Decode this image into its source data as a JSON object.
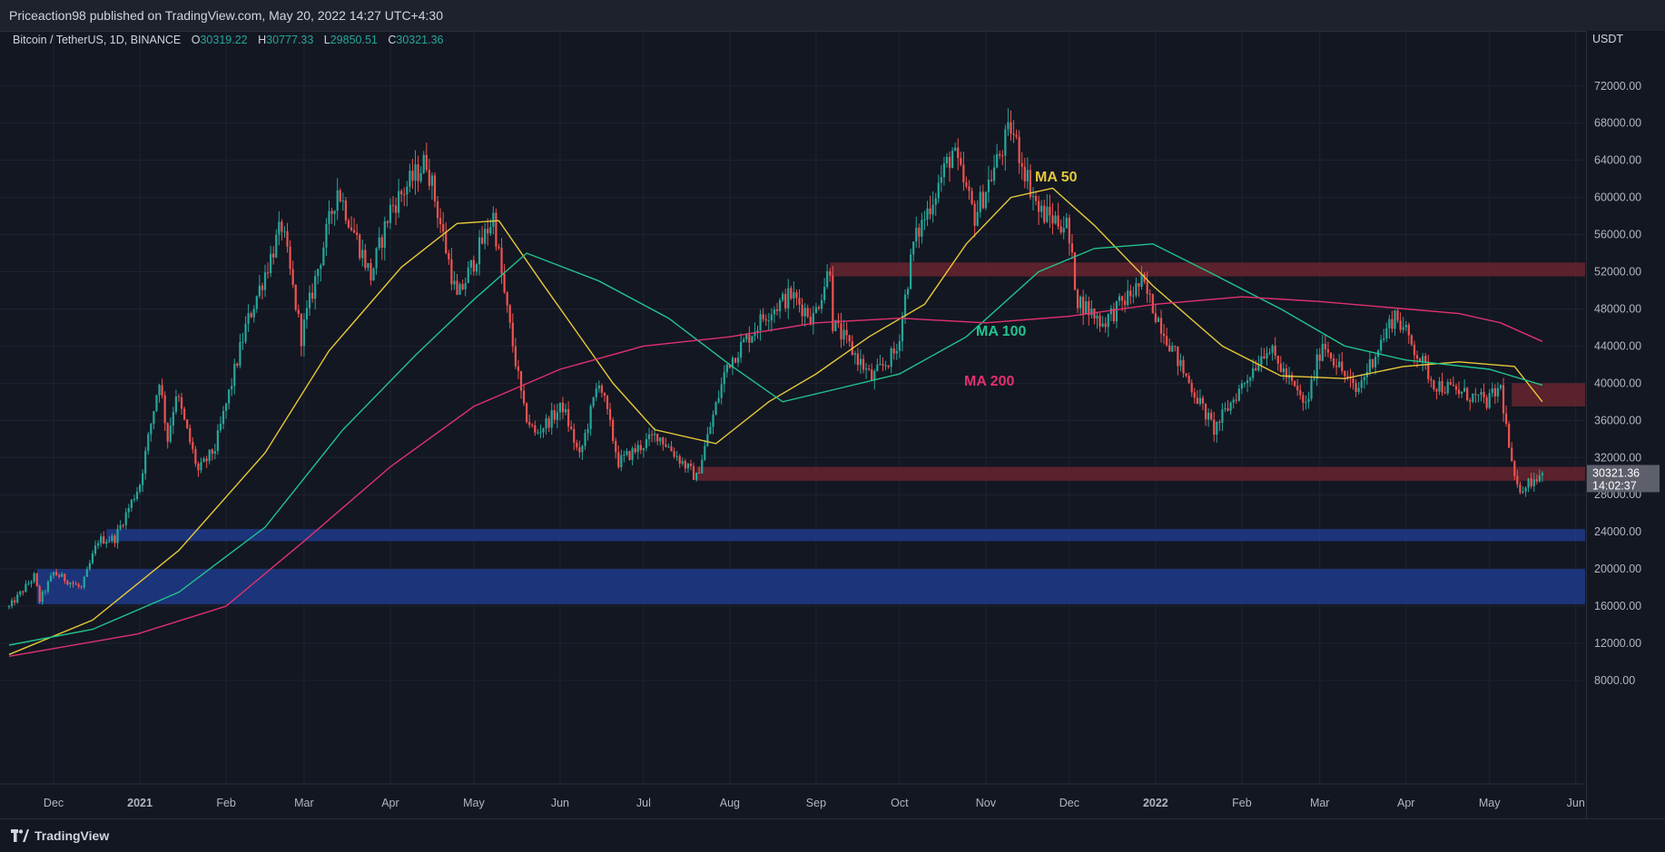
{
  "header": {
    "publisher": "Priceaction98 published on TradingView.com, May 20, 2022 14:27 UTC+4:30"
  },
  "legend": {
    "symbol": "Bitcoin / TetherUS, 1D, BINANCE",
    "o_label": "O",
    "o_value": "30319.22",
    "h_label": "H",
    "h_value": "30777.33",
    "l_label": "L",
    "l_value": "29850.51",
    "c_label": "C",
    "c_value": "30321.36"
  },
  "price_axis": {
    "currency": "USDT",
    "last_price": "30321.36",
    "countdown": "14:02:37"
  },
  "footer": {
    "brand": "TradingView"
  },
  "colors": {
    "background": "#131722",
    "up_candle": "#26a69a",
    "down_candle": "#ef5350",
    "ma50": "#e6c83a",
    "ma100": "#22c38e",
    "ma200": "#e0316f",
    "resistance_zone": "#6b2530",
    "support_zone": "#1e3a8a"
  },
  "chart_data": {
    "type": "candlestick",
    "title": "Bitcoin / TetherUS, 1D, BINANCE",
    "ylabel": "USDT",
    "ylim": [
      4500,
      75000
    ],
    "y_ticks": [
      "72000.00",
      "68000.00",
      "64000.00",
      "60000.00",
      "56000.00",
      "52000.00",
      "48000.00",
      "44000.00",
      "40000.00",
      "36000.00",
      "32000.00",
      "28000.00",
      "24000.00",
      "20000.00",
      "16000.00",
      "12000.00",
      "8000.00"
    ],
    "y_tick_values": [
      72000,
      68000,
      64000,
      60000,
      56000,
      52000,
      48000,
      44000,
      40000,
      36000,
      32000,
      28000,
      24000,
      20000,
      16000,
      12000,
      8000
    ],
    "x_ticks": [
      {
        "label": "Dec",
        "date": "2020-12-01"
      },
      {
        "label": "2021",
        "date": "2021-01-01"
      },
      {
        "label": "Feb",
        "date": "2021-02-01"
      },
      {
        "label": "Mar",
        "date": "2021-03-01"
      },
      {
        "label": "Apr",
        "date": "2021-04-01"
      },
      {
        "label": "May",
        "date": "2021-05-01"
      },
      {
        "label": "Jun",
        "date": "2021-06-01"
      },
      {
        "label": "Jul",
        "date": "2021-07-01"
      },
      {
        "label": "Aug",
        "date": "2021-08-01"
      },
      {
        "label": "Sep",
        "date": "2021-09-01"
      },
      {
        "label": "Oct",
        "date": "2021-10-01"
      },
      {
        "label": "Nov",
        "date": "2021-11-01"
      },
      {
        "label": "Dec",
        "date": "2021-12-01"
      },
      {
        "label": "2022",
        "date": "2022-01-01"
      },
      {
        "label": "Feb",
        "date": "2022-02-01"
      },
      {
        "label": "Mar",
        "date": "2022-03-01"
      },
      {
        "label": "Apr",
        "date": "2022-04-01"
      },
      {
        "label": "May",
        "date": "2022-05-01"
      },
      {
        "label": "Jun",
        "date": "2022-06-01"
      }
    ],
    "price_path": [
      [
        "2020-11-15",
        15900
      ],
      [
        "2020-11-24",
        19200
      ],
      [
        "2020-11-26",
        16600
      ],
      [
        "2020-12-01",
        19600
      ],
      [
        "2020-12-11",
        17900
      ],
      [
        "2020-12-17",
        23100
      ],
      [
        "2020-12-23",
        23300
      ],
      [
        "2021-01-01",
        29200
      ],
      [
        "2021-01-08",
        40500
      ],
      [
        "2021-01-11",
        34000
      ],
      [
        "2021-01-14",
        39000
      ],
      [
        "2021-01-22",
        30500
      ],
      [
        "2021-01-28",
        33000
      ],
      [
        "2021-02-08",
        46000
      ],
      [
        "2021-02-21",
        57000
      ],
      [
        "2021-02-28",
        45000
      ],
      [
        "2021-03-13",
        61000
      ],
      [
        "2021-03-25",
        51500
      ],
      [
        "2021-04-01",
        58800
      ],
      [
        "2021-04-14",
        64000
      ],
      [
        "2021-04-25",
        49000
      ],
      [
        "2021-05-08",
        58000
      ],
      [
        "2021-05-12",
        49500
      ],
      [
        "2021-05-19",
        37000
      ],
      [
        "2021-05-23",
        34500
      ],
      [
        "2021-06-02",
        37500
      ],
      [
        "2021-06-08",
        32000
      ],
      [
        "2021-06-15",
        40500
      ],
      [
        "2021-06-22",
        31500
      ],
      [
        "2021-07-06",
        34500
      ],
      [
        "2021-07-20",
        29800
      ],
      [
        "2021-07-31",
        42000
      ],
      [
        "2021-08-14",
        47500
      ],
      [
        "2021-08-23",
        49500
      ],
      [
        "2021-08-31",
        47000
      ],
      [
        "2021-09-06",
        52600
      ],
      [
        "2021-09-07",
        46500
      ],
      [
        "2021-09-21",
        40500
      ],
      [
        "2021-09-30",
        43500
      ],
      [
        "2021-10-06",
        55000
      ],
      [
        "2021-10-20",
        65000
      ],
      [
        "2021-10-28",
        58000
      ],
      [
        "2021-11-10",
        67500
      ],
      [
        "2021-11-20",
        58500
      ],
      [
        "2021-11-30",
        57000
      ],
      [
        "2021-12-04",
        49000
      ],
      [
        "2021-12-13",
        46500
      ],
      [
        "2021-12-27",
        50800
      ],
      [
        "2022-01-10",
        41800
      ],
      [
        "2022-01-22",
        35000
      ],
      [
        "2022-02-10",
        44000
      ],
      [
        "2022-02-24",
        37500
      ],
      [
        "2022-03-02",
        44500
      ],
      [
        "2022-03-14",
        39000
      ],
      [
        "2022-03-28",
        47500
      ],
      [
        "2022-04-11",
        40000
      ],
      [
        "2022-04-30",
        38000
      ],
      [
        "2022-05-05",
        39500
      ],
      [
        "2022-05-09",
        31000
      ],
      [
        "2022-05-11",
        28500
      ],
      [
        "2022-05-20",
        30321
      ]
    ],
    "series": [
      {
        "name": "MA 50",
        "points": [
          [
            "2020-11-15",
            10800
          ],
          [
            "2020-12-15",
            14500
          ],
          [
            "2021-01-15",
            22000
          ],
          [
            "2021-02-15",
            32500
          ],
          [
            "2021-03-10",
            43500
          ],
          [
            "2021-04-05",
            52500
          ],
          [
            "2021-04-25",
            57200
          ],
          [
            "2021-05-10",
            57500
          ],
          [
            "2021-05-25",
            51000
          ],
          [
            "2021-06-20",
            40000
          ],
          [
            "2021-07-05",
            35000
          ],
          [
            "2021-07-27",
            33500
          ],
          [
            "2021-08-15",
            38000
          ],
          [
            "2021-09-01",
            41000
          ],
          [
            "2021-09-20",
            45000
          ],
          [
            "2021-10-10",
            48500
          ],
          [
            "2021-10-25",
            55000
          ],
          [
            "2021-11-10",
            60000
          ],
          [
            "2021-11-25",
            61000
          ],
          [
            "2021-12-10",
            57000
          ],
          [
            "2021-12-31",
            50500
          ],
          [
            "2022-01-25",
            44000
          ],
          [
            "2022-02-15",
            40800
          ],
          [
            "2022-03-10",
            40500
          ],
          [
            "2022-03-31",
            41800
          ],
          [
            "2022-04-20",
            42300
          ],
          [
            "2022-05-10",
            41800
          ],
          [
            "2022-05-20",
            38000
          ]
        ]
      },
      {
        "name": "MA 100",
        "points": [
          [
            "2020-11-15",
            11800
          ],
          [
            "2020-12-15",
            13500
          ],
          [
            "2021-01-15",
            17500
          ],
          [
            "2021-02-15",
            24500
          ],
          [
            "2021-03-15",
            35000
          ],
          [
            "2021-04-10",
            43000
          ],
          [
            "2021-05-01",
            49000
          ],
          [
            "2021-05-20",
            54000
          ],
          [
            "2021-06-15",
            51000
          ],
          [
            "2021-07-10",
            47000
          ],
          [
            "2021-08-01",
            42000
          ],
          [
            "2021-08-20",
            38000
          ],
          [
            "2021-09-10",
            39500
          ],
          [
            "2021-10-01",
            41000
          ],
          [
            "2021-10-25",
            45000
          ],
          [
            "2021-11-20",
            52000
          ],
          [
            "2021-12-10",
            54500
          ],
          [
            "2021-12-31",
            55000
          ],
          [
            "2022-01-20",
            52000
          ],
          [
            "2022-02-15",
            48000
          ],
          [
            "2022-03-10",
            44000
          ],
          [
            "2022-04-01",
            42500
          ],
          [
            "2022-05-01",
            41500
          ],
          [
            "2022-05-20",
            39800
          ]
        ]
      },
      {
        "name": "MA 200",
        "points": [
          [
            "2020-11-15",
            10600
          ],
          [
            "2020-12-31",
            13000
          ],
          [
            "2021-02-01",
            16000
          ],
          [
            "2021-03-01",
            23000
          ],
          [
            "2021-04-01",
            31000
          ],
          [
            "2021-05-01",
            37500
          ],
          [
            "2021-06-01",
            41500
          ],
          [
            "2021-07-01",
            44000
          ],
          [
            "2021-08-01",
            45000
          ],
          [
            "2021-09-01",
            46500
          ],
          [
            "2021-10-01",
            47000
          ],
          [
            "2021-11-01",
            46500
          ],
          [
            "2021-12-01",
            47200
          ],
          [
            "2022-01-01",
            48500
          ],
          [
            "2022-02-01",
            49300
          ],
          [
            "2022-03-01",
            48800
          ],
          [
            "2022-04-01",
            48000
          ],
          [
            "2022-04-20",
            47500
          ],
          [
            "2022-05-05",
            46500
          ],
          [
            "2022-05-20",
            44500
          ]
        ]
      }
    ],
    "annotations": [
      {
        "text": "MA 50",
        "color": "#e6c83a"
      },
      {
        "text": "MA 100",
        "color": "#22c38e"
      },
      {
        "text": "MA 200",
        "color": "#e0316f"
      }
    ],
    "zones": [
      {
        "kind": "resistance",
        "start": "2021-09-06",
        "low": 51500,
        "high": 53000
      },
      {
        "kind": "resistance",
        "start": "2022-05-09",
        "low": 37500,
        "high": 40000
      },
      {
        "kind": "resistance",
        "start": "2021-07-20",
        "low": 29500,
        "high": 31000
      },
      {
        "kind": "support",
        "start": "2020-12-20",
        "low": 23000,
        "high": 24300
      },
      {
        "kind": "support",
        "start": "2020-11-25",
        "low": 16200,
        "high": 20000
      }
    ]
  }
}
